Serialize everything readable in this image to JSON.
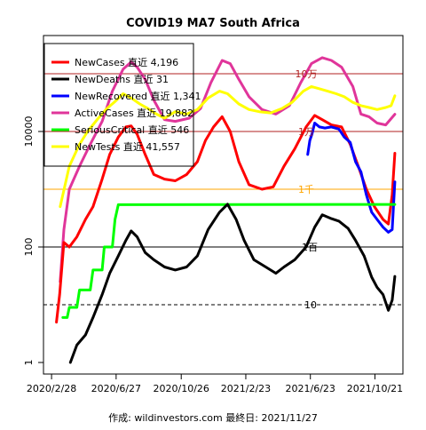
{
  "chart_data": {
    "type": "line",
    "title": "COVID19 MA7 South Africa",
    "caption": "作成: wildinvestors.com 最終日: 2021/11/27",
    "y_scale": "log",
    "ylim": [
      1,
      1000000
    ],
    "y_ticks": [
      {
        "value": 1,
        "label": "1"
      },
      {
        "value": 100,
        "label": "100"
      },
      {
        "value": 10000,
        "label": "10000"
      }
    ],
    "x_ticks": [
      {
        "date": "2020-02-28",
        "label": "2020/2/28"
      },
      {
        "date": "2020-06-27",
        "label": "2020/6/27"
      },
      {
        "date": "2020-10-26",
        "label": "2020/10/26"
      },
      {
        "date": "2021-02-23",
        "label": "2021/2/23"
      },
      {
        "date": "2021-06-23",
        "label": "2021/6/23"
      },
      {
        "date": "2021-10-21",
        "label": "2021/10/21"
      }
    ],
    "x_range": [
      "2020-02-13",
      "2021-12-12"
    ],
    "reference_lines": [
      {
        "value": 100000,
        "label": "10万",
        "color": "#b22222",
        "style": "solid"
      },
      {
        "value": 10000,
        "label": "1万",
        "color": "#b22222",
        "style": "solid"
      },
      {
        "value": 1000,
        "label": "1千",
        "color": "#ffa500",
        "style": "solid"
      },
      {
        "value": 100,
        "label": "1百",
        "color": "#000000",
        "style": "solid"
      },
      {
        "value": 10,
        "label": "10",
        "color": "#000000",
        "style": "dashed"
      }
    ],
    "legend": {
      "position": "top-left",
      "items": [
        {
          "text": "NewCases 直近  4,196",
          "color": "#ff0000"
        },
        {
          "text": "NewDeaths 直近     31",
          "color": "#000000"
        },
        {
          "text": "NewRecovered 直近  1,341",
          "color": "#0000ff"
        },
        {
          "text": "ActiveCases 直近 19,882",
          "color": "#e0359a"
        },
        {
          "text": "SeriousCritical 直近   546",
          "color": "#00ff00"
        },
        {
          "text": "NewTests 直近 41,557",
          "color": "#ffff00"
        }
      ]
    },
    "series": [
      {
        "name": "ActiveCases",
        "color": "#e0359a",
        "points": [
          [
            "2020-03-15",
            25
          ],
          [
            "2020-03-22",
            200
          ],
          [
            "2020-04-01",
            1000
          ],
          [
            "2020-04-20",
            2500
          ],
          [
            "2020-05-10",
            6000
          ],
          [
            "2020-06-01",
            15000
          ],
          [
            "2020-06-20",
            50000
          ],
          [
            "2020-07-10",
            120000
          ],
          [
            "2020-07-25",
            160000
          ],
          [
            "2020-08-05",
            130000
          ],
          [
            "2020-08-20",
            80000
          ],
          [
            "2020-09-05",
            35000
          ],
          [
            "2020-09-25",
            16000
          ],
          [
            "2020-10-15",
            15000
          ],
          [
            "2020-11-10",
            17000
          ],
          [
            "2020-12-01",
            25000
          ],
          [
            "2020-12-20",
            70000
          ],
          [
            "2021-01-10",
            170000
          ],
          [
            "2021-01-25",
            150000
          ],
          [
            "2021-02-10",
            80000
          ],
          [
            "2021-03-01",
            40000
          ],
          [
            "2021-03-25",
            24000
          ],
          [
            "2021-04-20",
            20000
          ],
          [
            "2021-05-15",
            28000
          ],
          [
            "2021-06-05",
            70000
          ],
          [
            "2021-06-25",
            150000
          ],
          [
            "2021-07-15",
            190000
          ],
          [
            "2021-08-01",
            170000
          ],
          [
            "2021-08-20",
            130000
          ],
          [
            "2021-09-10",
            60000
          ],
          [
            "2021-09-25",
            20000
          ],
          [
            "2021-10-10",
            18000
          ],
          [
            "2021-10-25",
            14000
          ],
          [
            "2021-11-10",
            13000
          ],
          [
            "2021-11-27",
            19882
          ]
        ]
      },
      {
        "name": "NewTests",
        "color": "#ffff00",
        "points": [
          [
            "2020-03-15",
            500
          ],
          [
            "2020-04-01",
            2500
          ],
          [
            "2020-04-20",
            6000
          ],
          [
            "2020-05-05",
            10000
          ],
          [
            "2020-05-25",
            17000
          ],
          [
            "2020-06-10",
            25000
          ],
          [
            "2020-06-25",
            33000
          ],
          [
            "2020-07-10",
            45000
          ],
          [
            "2020-07-25",
            38000
          ],
          [
            "2020-08-10",
            30000
          ],
          [
            "2020-08-25",
            25000
          ],
          [
            "2020-09-10",
            20000
          ],
          [
            "2020-09-25",
            17000
          ],
          [
            "2020-10-15",
            22000
          ],
          [
            "2020-11-05",
            20000
          ],
          [
            "2020-11-25",
            24000
          ],
          [
            "2020-12-15",
            38000
          ],
          [
            "2021-01-05",
            50000
          ],
          [
            "2021-01-20",
            45000
          ],
          [
            "2021-02-10",
            30000
          ],
          [
            "2021-03-01",
            24000
          ],
          [
            "2021-03-20",
            22000
          ],
          [
            "2021-04-10",
            21000
          ],
          [
            "2021-05-01",
            25000
          ],
          [
            "2021-05-20",
            32000
          ],
          [
            "2021-06-10",
            50000
          ],
          [
            "2021-06-25",
            60000
          ],
          [
            "2021-07-10",
            55000
          ],
          [
            "2021-07-25",
            50000
          ],
          [
            "2021-08-10",
            45000
          ],
          [
            "2021-08-25",
            40000
          ],
          [
            "2021-09-10",
            32000
          ],
          [
            "2021-09-25",
            28000
          ],
          [
            "2021-10-10",
            26000
          ],
          [
            "2021-10-25",
            24000
          ],
          [
            "2021-11-10",
            26000
          ],
          [
            "2021-11-20",
            28000
          ],
          [
            "2021-11-27",
            41557
          ]
        ]
      },
      {
        "name": "NewCases",
        "color": "#ff0000",
        "points": [
          [
            "2020-03-08",
            5
          ],
          [
            "2020-03-14",
            15
          ],
          [
            "2020-03-22",
            120
          ],
          [
            "2020-04-01",
            100
          ],
          [
            "2020-04-15",
            150
          ],
          [
            "2020-05-01",
            300
          ],
          [
            "2020-05-15",
            500
          ],
          [
            "2020-06-01",
            1500
          ],
          [
            "2020-06-15",
            4000
          ],
          [
            "2020-07-01",
            8000
          ],
          [
            "2020-07-15",
            12000
          ],
          [
            "2020-07-25",
            12500
          ],
          [
            "2020-08-05",
            9000
          ],
          [
            "2020-08-20",
            4000
          ],
          [
            "2020-09-05",
            1800
          ],
          [
            "2020-09-25",
            1500
          ],
          [
            "2020-10-15",
            1400
          ],
          [
            "2020-11-05",
            1800
          ],
          [
            "2020-11-25",
            3000
          ],
          [
            "2020-12-10",
            7000
          ],
          [
            "2020-12-25",
            12000
          ],
          [
            "2021-01-10",
            18000
          ],
          [
            "2021-01-25",
            10000
          ],
          [
            "2021-02-10",
            3000
          ],
          [
            "2021-03-01",
            1200
          ],
          [
            "2021-03-25",
            1000
          ],
          [
            "2021-04-15",
            1100
          ],
          [
            "2021-05-05",
            2500
          ],
          [
            "2021-05-25",
            5000
          ],
          [
            "2021-06-15",
            12000
          ],
          [
            "2021-07-01",
            19000
          ],
          [
            "2021-07-15",
            16000
          ],
          [
            "2021-08-01",
            13000
          ],
          [
            "2021-08-20",
            12000
          ],
          [
            "2021-09-05",
            6000
          ],
          [
            "2021-09-20",
            2500
          ],
          [
            "2021-10-05",
            1000
          ],
          [
            "2021-10-20",
            500
          ],
          [
            "2021-11-05",
            300
          ],
          [
            "2021-11-15",
            250
          ],
          [
            "2021-11-22",
            800
          ],
          [
            "2021-11-27",
            4196
          ]
        ]
      },
      {
        "name": "NewRecovered",
        "color": "#0000ff",
        "points": [
          [
            "2021-06-18",
            4000
          ],
          [
            "2021-06-22",
            7000
          ],
          [
            "2021-06-26",
            9000
          ],
          [
            "2021-07-01",
            14000
          ],
          [
            "2021-07-10",
            12000
          ],
          [
            "2021-07-20",
            11500
          ],
          [
            "2021-08-01",
            12000
          ],
          [
            "2021-08-15",
            11000
          ],
          [
            "2021-08-25",
            8000
          ],
          [
            "2021-09-05",
            6500
          ],
          [
            "2021-09-15",
            3000
          ],
          [
            "2021-09-25",
            2000
          ],
          [
            "2021-10-05",
            800
          ],
          [
            "2021-10-15",
            400
          ],
          [
            "2021-10-25",
            300
          ],
          [
            "2021-11-05",
            220
          ],
          [
            "2021-11-15",
            180
          ],
          [
            "2021-11-22",
            200
          ],
          [
            "2021-11-27",
            1341
          ]
        ]
      },
      {
        "name": "SeriousCritical",
        "color": "#00ff00",
        "points": [
          [
            "2020-03-20",
            6
          ],
          [
            "2020-03-28",
            6
          ],
          [
            "2020-04-01",
            9
          ],
          [
            "2020-04-15",
            9
          ],
          [
            "2020-04-20",
            18
          ],
          [
            "2020-05-10",
            18
          ],
          [
            "2020-05-15",
            40
          ],
          [
            "2020-06-01",
            40
          ],
          [
            "2020-06-05",
            100
          ],
          [
            "2020-06-20",
            100
          ],
          [
            "2020-06-25",
            300
          ],
          [
            "2020-07-01",
            539
          ],
          [
            "2021-11-27",
            546
          ]
        ]
      },
      {
        "name": "NewDeaths",
        "color": "#000000",
        "points": [
          [
            "2020-04-03",
            1
          ],
          [
            "2020-04-15",
            2
          ],
          [
            "2020-05-01",
            3
          ],
          [
            "2020-05-15",
            6
          ],
          [
            "2020-06-01",
            15
          ],
          [
            "2020-06-15",
            35
          ],
          [
            "2020-07-01",
            70
          ],
          [
            "2020-07-15",
            130
          ],
          [
            "2020-07-25",
            190
          ],
          [
            "2020-08-05",
            150
          ],
          [
            "2020-08-20",
            80
          ],
          [
            "2020-09-05",
            60
          ],
          [
            "2020-09-25",
            45
          ],
          [
            "2020-10-15",
            40
          ],
          [
            "2020-11-05",
            45
          ],
          [
            "2020-11-25",
            70
          ],
          [
            "2020-12-15",
            200
          ],
          [
            "2021-01-05",
            400
          ],
          [
            "2021-01-20",
            550
          ],
          [
            "2021-02-05",
            300
          ],
          [
            "2021-02-20",
            130
          ],
          [
            "2021-03-10",
            60
          ],
          [
            "2021-04-01",
            45
          ],
          [
            "2021-04-20",
            35
          ],
          [
            "2021-05-05",
            45
          ],
          [
            "2021-05-25",
            60
          ],
          [
            "2021-06-15",
            100
          ],
          [
            "2021-07-01",
            220
          ],
          [
            "2021-07-15",
            360
          ],
          [
            "2021-08-01",
            310
          ],
          [
            "2021-08-15",
            280
          ],
          [
            "2021-09-01",
            210
          ],
          [
            "2021-09-15",
            130
          ],
          [
            "2021-10-01",
            70
          ],
          [
            "2021-10-15",
            30
          ],
          [
            "2021-10-25",
            20
          ],
          [
            "2021-11-05",
            15
          ],
          [
            "2021-11-15",
            8
          ],
          [
            "2021-11-22",
            12
          ],
          [
            "2021-11-27",
            31
          ]
        ]
      }
    ]
  }
}
